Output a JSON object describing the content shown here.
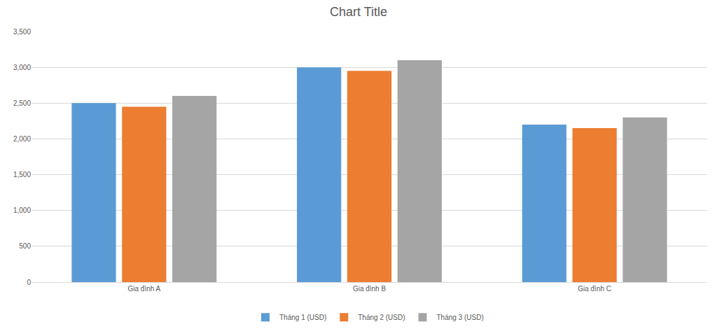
{
  "chart_data": {
    "type": "bar",
    "title": "Chart Title",
    "categories": [
      "Gia đình A",
      "Gia đình B",
      "Gia đình C"
    ],
    "series": [
      {
        "name": "Tháng 1 (USD)",
        "color": "#5b9bd5",
        "values": [
          2500,
          3000,
          2200
        ]
      },
      {
        "name": "Tháng 2 (USD)",
        "color": "#ed7d31",
        "values": [
          2450,
          2950,
          2150
        ]
      },
      {
        "name": "Tháng 3 (USD)",
        "color": "#a5a5a5",
        "values": [
          2600,
          3100,
          2300
        ]
      }
    ],
    "ylim": [
      0,
      3500
    ],
    "yticks": [
      0,
      500,
      {
        "value": 1000,
        "label": "1,000"
      },
      {
        "value": 1500,
        "label": "1,500"
      },
      {
        "value": 2000,
        "label": "2,000"
      },
      {
        "value": 2500,
        "label": "2,500"
      },
      {
        "value": 3000,
        "label": "3,000"
      },
      {
        "value": 3500,
        "label": "3,500"
      }
    ],
    "grid": true,
    "legend": "bottom"
  }
}
